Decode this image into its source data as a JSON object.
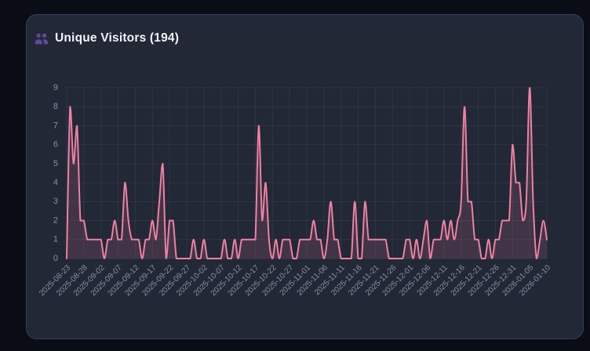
{
  "card": {
    "title": "Unique Visitors (194)",
    "icon": "users-icon"
  },
  "colors": {
    "page_bg": "#0a0d16",
    "card_bg": "#232837",
    "card_border": "#373e59",
    "title_text": "#f2f3f7",
    "icon_purple": "#5d4a9c",
    "line": "#ee81a1",
    "area_fill": "rgba(240,130,162,0.14)",
    "grid": "rgba(255,255,255,0.06)",
    "axis_label": "#8a90a2"
  },
  "chart_data": {
    "type": "area",
    "title": "Unique Visitors (194)",
    "total_visitors": 194,
    "start_date": "2025-08-23",
    "end_date": "2026-01-10",
    "interval_days": 1,
    "x_tick_every_days": 5,
    "x_tick_labels": [
      "2025-08-23",
      "2025-08-28",
      "2025-09-02",
      "2025-09-07",
      "2025-09-12",
      "2025-09-17",
      "2025-09-22",
      "2025-09-27",
      "2025-10-02",
      "2025-10-07",
      "2025-10-12",
      "2025-10-17",
      "2025-10-22",
      "2025-10-27",
      "2025-11-01",
      "2025-11-06",
      "2025-11-11",
      "2025-11-16",
      "2025-11-21",
      "2025-11-26",
      "2025-12-01",
      "2025-12-06",
      "2025-12-11",
      "2025-12-16",
      "2025-12-21",
      "2025-12-26",
      "2025-12-31",
      "2026-01-05",
      "2026-01-10"
    ],
    "y_ticks": [
      0,
      1,
      2,
      3,
      4,
      5,
      6,
      7,
      8,
      9
    ],
    "ylim": [
      0,
      9
    ],
    "grid": true,
    "legend": false,
    "values": [
      0,
      8,
      5,
      7,
      2,
      2,
      1,
      1,
      1,
      1,
      1,
      0,
      1,
      1,
      2,
      1,
      1,
      4,
      2,
      1,
      1,
      1,
      0,
      1,
      1,
      2,
      1,
      3,
      5,
      0,
      2,
      2,
      0,
      0,
      0,
      0,
      0,
      1,
      0,
      0,
      1,
      0,
      0,
      0,
      0,
      0,
      1,
      0,
      0,
      1,
      0,
      1,
      1,
      1,
      1,
      1,
      7,
      2,
      4,
      1,
      0,
      1,
      0,
      1,
      1,
      1,
      0,
      0,
      1,
      1,
      1,
      1,
      2,
      1,
      1,
      0,
      1,
      3,
      1,
      1,
      0,
      0,
      0,
      0,
      3,
      0,
      0,
      3,
      1,
      1,
      1,
      1,
      1,
      1,
      0,
      0,
      0,
      0,
      0,
      1,
      1,
      0,
      1,
      0,
      1,
      2,
      0,
      1,
      1,
      1,
      2,
      1,
      2,
      1,
      2,
      3,
      8,
      3,
      3,
      1,
      1,
      0,
      0,
      1,
      0,
      1,
      1,
      2,
      2,
      2,
      6,
      4,
      4,
      2,
      3,
      9,
      3,
      0,
      1,
      2,
      1
    ]
  }
}
